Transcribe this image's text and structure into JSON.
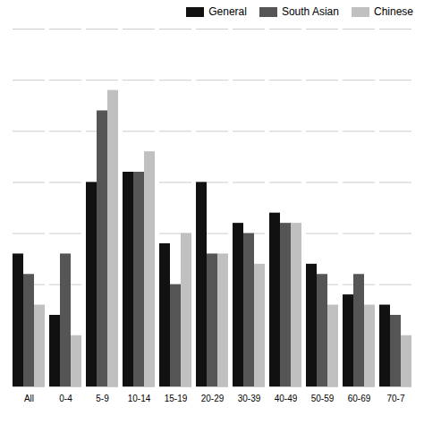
{
  "chart_data": {
    "type": "bar",
    "categories": [
      "All",
      "0-4",
      "5-9",
      "10-14",
      "15-19",
      "20-29",
      "30-39",
      "40-49",
      "50-59",
      "60-69",
      "70-7"
    ],
    "series": [
      {
        "name": "General",
        "color": "#111111",
        "values": [
          13,
          7,
          20,
          21,
          14,
          20,
          16,
          17,
          12,
          9,
          8
        ]
      },
      {
        "name": "South Asian",
        "color": "#555555",
        "values": [
          11,
          13,
          27,
          21,
          10,
          13,
          15,
          16,
          11,
          11,
          7
        ]
      },
      {
        "name": "Chinese",
        "color": "#c0c0c0",
        "values": [
          8,
          5,
          29,
          23,
          15,
          13,
          12,
          16,
          8,
          8,
          5
        ]
      }
    ],
    "ylim": [
      0,
      35
    ],
    "yticks": [
      0,
      5,
      10,
      15,
      20,
      25,
      30,
      35
    ],
    "grid": true,
    "legend": "upper right",
    "tick_labels": "x"
  }
}
